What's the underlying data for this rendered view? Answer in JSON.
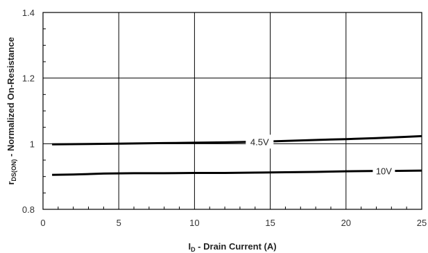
{
  "chart_data": {
    "type": "line",
    "title": "",
    "xlabel": {
      "main": "I",
      "sub": "D",
      "rest": " - Drain Current (A)"
    },
    "ylabel": {
      "main": "r",
      "sub": "DS(ON)",
      "rest": " - Normalized On-Resistance"
    },
    "xlim": [
      0,
      25
    ],
    "ylim": [
      0.8,
      1.4
    ],
    "xticks": [
      0,
      5,
      10,
      15,
      20,
      25
    ],
    "xtick_labels": [
      "0",
      "5",
      "10",
      "15",
      "20",
      "25"
    ],
    "yticks": [
      0.8,
      1.0,
      1.2,
      1.4
    ],
    "ytick_labels": [
      "0.8",
      "1",
      "1.2",
      "1.4"
    ],
    "grid": true,
    "legend": "none",
    "series": [
      {
        "name": "4.5V",
        "label_at": 14.3,
        "x": [
          0.6,
          3,
          5,
          8,
          10,
          12,
          14,
          15,
          17,
          19,
          20,
          22,
          24,
          25
        ],
        "y": [
          0.998,
          0.999,
          1.0,
          1.002,
          1.003,
          1.004,
          1.006,
          1.007,
          1.01,
          1.013,
          1.014,
          1.017,
          1.021,
          1.023
        ]
      },
      {
        "name": "10V",
        "label_at": 22.5,
        "x": [
          0.6,
          2,
          4,
          6,
          8,
          10,
          12,
          14,
          16,
          18,
          20,
          22,
          23,
          25
        ],
        "y": [
          0.905,
          0.906,
          0.909,
          0.91,
          0.91,
          0.911,
          0.911,
          0.912,
          0.913,
          0.914,
          0.916,
          0.917,
          0.917,
          0.918
        ]
      }
    ],
    "colors": {
      "line": "#000000",
      "grid": "#000000",
      "frame": "#000000"
    }
  }
}
